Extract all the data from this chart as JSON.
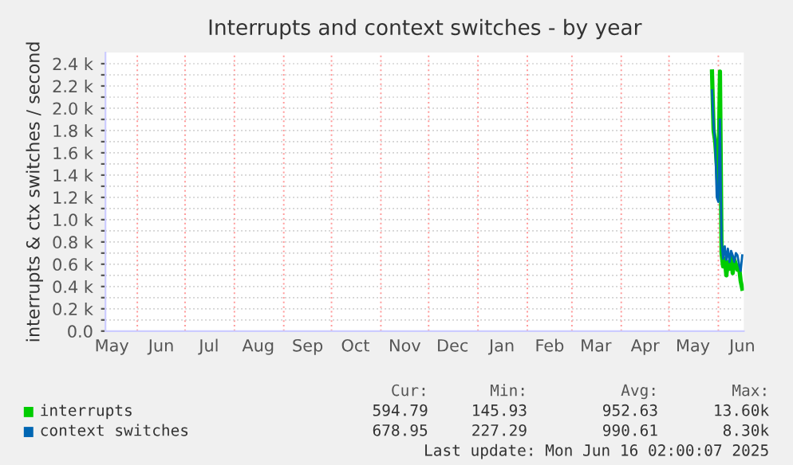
{
  "chart_data": {
    "type": "line",
    "title": "Interrupts and context switches - by year",
    "ylabel": "interrupts & ctx switches / second",
    "xlim": [
      "2024-05-12",
      "2025-06-17"
    ],
    "xticks": [
      {
        "value": "2024-05-16",
        "label": "May"
      },
      {
        "value": "2024-06-01",
        "label": null
      },
      {
        "value": "2024-06-16",
        "label": "Jun"
      },
      {
        "value": "2024-07-01",
        "label": null
      },
      {
        "value": "2024-07-16",
        "label": "Jul"
      },
      {
        "value": "2024-08-01",
        "label": null
      },
      {
        "value": "2024-08-16",
        "label": "Aug"
      },
      {
        "value": "2024-09-01",
        "label": null
      },
      {
        "value": "2024-09-16",
        "label": "Sep"
      },
      {
        "value": "2024-10-01",
        "label": null
      },
      {
        "value": "2024-10-16",
        "label": "Oct"
      },
      {
        "value": "2024-11-01",
        "label": null
      },
      {
        "value": "2024-11-16",
        "label": "Nov"
      },
      {
        "value": "2024-12-01",
        "label": null
      },
      {
        "value": "2024-12-16",
        "label": "Dec"
      },
      {
        "value": "2025-01-01",
        "label": null
      },
      {
        "value": "2025-01-16",
        "label": "Jan"
      },
      {
        "value": "2025-02-01",
        "label": null
      },
      {
        "value": "2025-02-15",
        "label": "Feb"
      },
      {
        "value": "2025-03-01",
        "label": null
      },
      {
        "value": "2025-03-16",
        "label": "Mar"
      },
      {
        "value": "2025-04-01",
        "label": null
      },
      {
        "value": "2025-04-16",
        "label": "Apr"
      },
      {
        "value": "2025-05-01",
        "label": null
      },
      {
        "value": "2025-05-16",
        "label": "May"
      },
      {
        "value": "2025-06-01",
        "label": null
      },
      {
        "value": "2025-06-16",
        "label": "Jun"
      }
    ],
    "ylim": [
      0,
      2500
    ],
    "yticks": [
      {
        "value": 0,
        "label": "0.0"
      },
      {
        "value": 100,
        "label": null
      },
      {
        "value": 200,
        "label": "0.2 k"
      },
      {
        "value": 300,
        "label": null
      },
      {
        "value": 400,
        "label": "0.4 k"
      },
      {
        "value": 500,
        "label": null
      },
      {
        "value": 600,
        "label": "0.6 k"
      },
      {
        "value": 700,
        "label": null
      },
      {
        "value": 800,
        "label": "0.8 k"
      },
      {
        "value": 900,
        "label": null
      },
      {
        "value": 1000,
        "label": "1.0 k"
      },
      {
        "value": 1100,
        "label": null
      },
      {
        "value": 1200,
        "label": "1.2 k"
      },
      {
        "value": 1300,
        "label": null
      },
      {
        "value": 1400,
        "label": "1.4 k"
      },
      {
        "value": 1500,
        "label": null
      },
      {
        "value": 1600,
        "label": "1.6 k"
      },
      {
        "value": 1700,
        "label": null
      },
      {
        "value": 1800,
        "label": "1.8 k"
      },
      {
        "value": 1900,
        "label": null
      },
      {
        "value": 2000,
        "label": "2.0 k"
      },
      {
        "value": 2100,
        "label": null
      },
      {
        "value": 2200,
        "label": "2.2 k"
      },
      {
        "value": 2300,
        "label": null
      },
      {
        "value": 2400,
        "label": "2.4 k"
      }
    ],
    "grid": true,
    "legend": "bottom",
    "marker": "none",
    "line_style": "solid",
    "x": [
      "2025-05-28",
      "2025-05-29",
      "2025-05-30",
      "2025-05-31",
      "2025-06-01",
      "2025-06-02",
      "2025-06-03",
      "2025-06-04",
      "2025-06-05",
      "2025-06-06",
      "2025-06-07",
      "2025-06-08",
      "2025-06-09",
      "2025-06-10",
      "2025-06-11",
      "2025-06-12",
      "2025-06-13",
      "2025-06-14",
      "2025-06-15",
      "2025-06-16"
    ],
    "series": [
      {
        "name": "interrupts",
        "color": "#00cc00",
        "values": [
          2330,
          1800,
          1700,
          1500,
          1250,
          2330,
          700,
          580,
          650,
          500,
          620,
          560,
          680,
          520,
          640,
          600,
          550,
          580,
          450,
          380
        ]
      },
      {
        "name": "context switches",
        "color": "#0066b3",
        "values": [
          2160,
          1850,
          1700,
          1200,
          1160,
          1900,
          800,
          650,
          760,
          640,
          740,
          620,
          720,
          680,
          620,
          700,
          680,
          600,
          540,
          680
        ]
      }
    ],
    "annotations": [
      "Cur:",
      "Min:",
      "Avg:",
      "Max:",
      "594.79",
      "145.93",
      "952.63",
      "13.60k",
      "678.95",
      "227.29",
      "990.61",
      "8.30k",
      "Last update: Mon Jun 16 02:00:07 2025"
    ]
  }
}
